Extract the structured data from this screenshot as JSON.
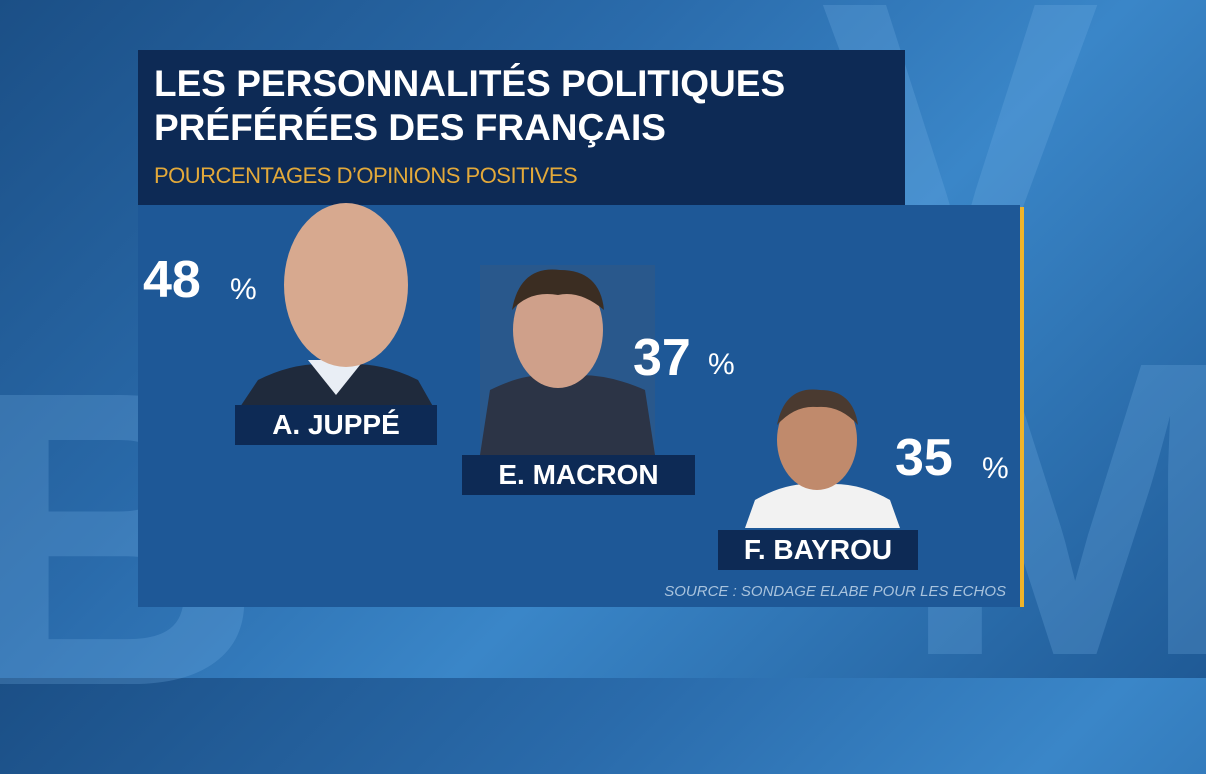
{
  "header": {
    "title": [
      "LES PERSONNALITÉS POLITIQUES",
      "PRÉFÉRÉES DES FRANÇAIS"
    ],
    "subtitle": "POURCENTAGES D’OPINIONS POSITIVES"
  },
  "items": [
    {
      "name": "A. JUPPÉ",
      "value": 48,
      "unit": "%"
    },
    {
      "name": "E. MACRON",
      "value": 37,
      "unit": "%"
    },
    {
      "name": "F. BAYROU",
      "value": 35,
      "unit": "%"
    }
  ],
  "source": "SOURCE : SONDAGE ELABE POUR LES ECHOS"
}
